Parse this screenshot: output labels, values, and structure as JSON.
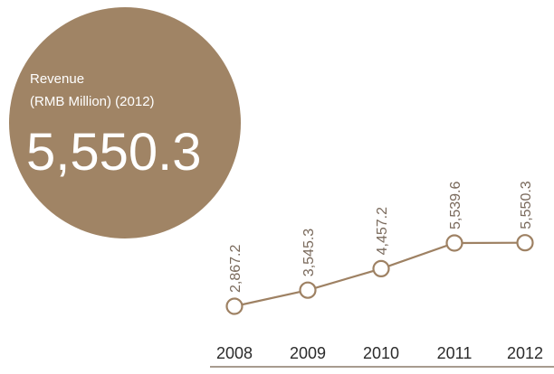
{
  "callout": {
    "label_line1": "Revenue",
    "label_line2": "(RMB Million) (2012)",
    "value": "5,550.3"
  },
  "chart_data": {
    "type": "line",
    "x": [
      "2008",
      "2009",
      "2010",
      "2011",
      "2012"
    ],
    "series": [
      {
        "values": [
          2867.2,
          3545.3,
          4457.2,
          5539.6,
          5550.3
        ],
        "labels": [
          "2,867.2",
          "3,545.3",
          "4,457.2",
          "5,539.6",
          "5,550.3"
        ]
      }
    ],
    "colors": {
      "line": "#9e8163",
      "callout_fill": "#a08465",
      "label_text": "#7a6a5c",
      "axis": "#8a7a6a",
      "year_text": "#2b2b2b"
    }
  }
}
